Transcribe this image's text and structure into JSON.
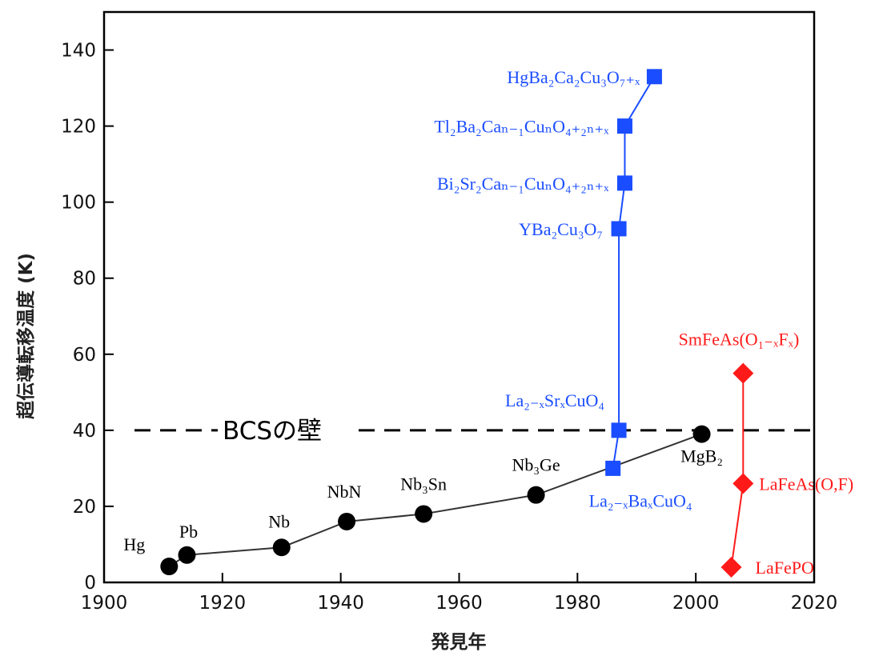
{
  "chart_data": {
    "type": "scatter",
    "xlabel": "発見年",
    "ylabel": "超伝導転移温度 (K)",
    "xlim": [
      1900,
      2020
    ],
    "ylim": [
      0,
      150
    ],
    "x_ticks": [
      1900,
      1920,
      1940,
      1960,
      1980,
      2000,
      2020
    ],
    "y_ticks": [
      0,
      20,
      40,
      60,
      80,
      100,
      120,
      140
    ],
    "grid": false,
    "reference_line": {
      "y": 40,
      "label": "BCSの壁",
      "style": "dashed"
    },
    "series": [
      {
        "color": "#000000",
        "marker": "circle",
        "points": [
          {
            "x": 1911,
            "y": 4.2,
            "label": "Hg"
          },
          {
            "x": 1914,
            "y": 7.2,
            "label": "Pb"
          },
          {
            "x": 1930,
            "y": 9.2,
            "label": "Nb"
          },
          {
            "x": 1941,
            "y": 16,
            "label": "NbN"
          },
          {
            "x": 1954,
            "y": 18,
            "label": "Nb₃Sn"
          },
          {
            "x": 1973,
            "y": 23,
            "label": "Nb₃Ge"
          },
          {
            "x": 2001,
            "y": 39,
            "label": "MgB₂"
          }
        ]
      },
      {
        "color": "#1a4dff",
        "marker": "square",
        "points": [
          {
            "x": 1986,
            "y": 30,
            "label": "La₂₋ₓBaₓCuO₄"
          },
          {
            "x": 1987,
            "y": 40,
            "label": "La₂₋ₓSrₓCuO₄"
          },
          {
            "x": 1987,
            "y": 93,
            "label": "YBa₂Cu₃O₇"
          },
          {
            "x": 1988,
            "y": 105,
            "label": "Bi₂Sr₂Caₙ₋₁CuₙO₄₊₂ₙ₊ₓ"
          },
          {
            "x": 1988,
            "y": 120,
            "label": "Tl₂Ba₂Caₙ₋₁CuₙO₄₊₂ₙ₊ₓ"
          },
          {
            "x": 1993,
            "y": 133,
            "label": "HgBa₂Ca₂Cu₃O₇₊ₓ"
          }
        ]
      },
      {
        "color": "#ff1a1a",
        "marker": "diamond",
        "points": [
          {
            "x": 2006,
            "y": 4,
            "label": "LaFePO"
          },
          {
            "x": 2008,
            "y": 26,
            "label": "LaFeAs(O,F)"
          },
          {
            "x": 2008,
            "y": 55,
            "label": "SmFeAs(O₁₋ₓFₓ)"
          }
        ]
      }
    ]
  }
}
